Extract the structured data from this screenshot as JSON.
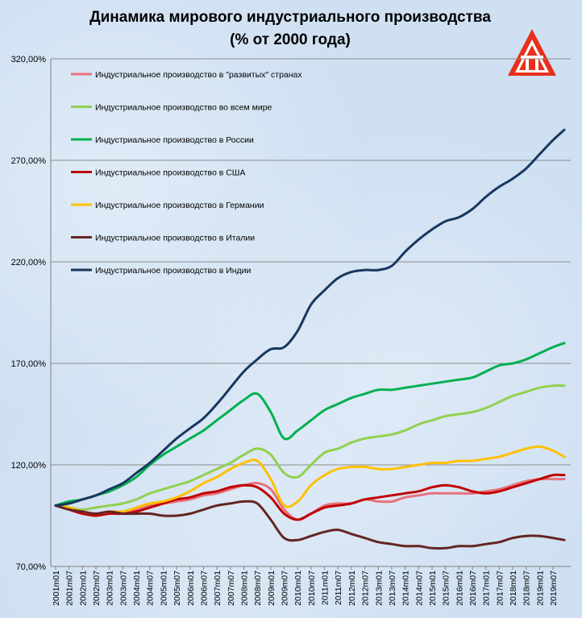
{
  "title": {
    "line1": "Динамика мирового индустриального производства",
    "line2": "(% от 2000 года)"
  },
  "logo": {
    "icon": "logo-mark-icon",
    "colors": [
      "#e8301c",
      "#ffffff"
    ]
  },
  "chart_data": {
    "type": "line",
    "ylim": [
      70,
      320
    ],
    "y_ticks": [
      70,
      120,
      170,
      220,
      270,
      320
    ],
    "y_tick_labels": [
      "70,00%",
      "120,00%",
      "170,00%",
      "220,00%",
      "270,00%",
      "320,00%"
    ],
    "grid": "horizontal",
    "legend_position": "top-left",
    "x_tick_labels": [
      "2001m01",
      "2001m07",
      "2002m01",
      "2002m07",
      "2003m01",
      "2003m07",
      "2004m01",
      "2004m07",
      "2005m01",
      "2005m07",
      "2006m01",
      "2006m07",
      "2007m01",
      "2007m07",
      "2008m01",
      "2008m07",
      "2009m01",
      "2009m07",
      "2010m01",
      "2010m07",
      "2011m01",
      "2011m07",
      "2012m01",
      "2012m07",
      "2013m01",
      "2013m07",
      "2014m01",
      "2014m07",
      "2015m01",
      "2015m07",
      "2016m01",
      "2016m07",
      "2017m01",
      "2017m07",
      "2018m01",
      "2018m07",
      "2019m01",
      "2019m07"
    ],
    "x": [
      "2001m01",
      "2001m07",
      "2002m01",
      "2002m07",
      "2003m01",
      "2003m07",
      "2004m01",
      "2004m07",
      "2005m01",
      "2005m07",
      "2006m01",
      "2006m07",
      "2007m01",
      "2007m07",
      "2008m01",
      "2008m07",
      "2009m01",
      "2009m07",
      "2010m01",
      "2010m07",
      "2011m01",
      "2011m07",
      "2012m01",
      "2012m07",
      "2013m01",
      "2013m07",
      "2014m01",
      "2014m07",
      "2015m01",
      "2015m07",
      "2016m01",
      "2016m07",
      "2017m01",
      "2017m07",
      "2018m01",
      "2018m07",
      "2019m01",
      "2019m07",
      "2019m12"
    ],
    "series": [
      {
        "name": "Индустриальное производство в \"развитых\" странах",
        "color": "#e8717c",
        "values": [
          100,
          98,
          96,
          96,
          97,
          97,
          98,
          100,
          101,
          102,
          103,
          105,
          106,
          108,
          110,
          111,
          108,
          98,
          93,
          96,
          100,
          101,
          101,
          103,
          102,
          102,
          104,
          105,
          106,
          106,
          106,
          106,
          107,
          108,
          110,
          112,
          113,
          113,
          113
        ]
      },
      {
        "name": "Индустриальное производство во всем мире",
        "color": "#92d050",
        "values": [
          100,
          99,
          98,
          99,
          100,
          101,
          103,
          106,
          108,
          110,
          112,
          115,
          118,
          121,
          125,
          128,
          125,
          116,
          114,
          120,
          126,
          128,
          131,
          133,
          134,
          135,
          137,
          140,
          142,
          144,
          145,
          146,
          148,
          151,
          154,
          156,
          158,
          159,
          159
        ]
      },
      {
        "name": "Индустриальное производство в России",
        "color": "#00b050",
        "values": [
          100,
          102,
          103,
          105,
          107,
          110,
          114,
          120,
          125,
          129,
          133,
          137,
          142,
          147,
          152,
          155,
          146,
          133,
          137,
          142,
          147,
          150,
          153,
          155,
          157,
          157,
          158,
          159,
          160,
          161,
          162,
          163,
          166,
          169,
          170,
          172,
          175,
          178,
          180
        ]
      },
      {
        "name": "Индустриальное производство в США",
        "color": "#c00000",
        "values": [
          100,
          98,
          96,
          95,
          96,
          96,
          97,
          99,
          101,
          103,
          104,
          106,
          107,
          109,
          110,
          109,
          104,
          96,
          93,
          96,
          99,
          100,
          101,
          103,
          104,
          105,
          106,
          107,
          109,
          110,
          109,
          107,
          106,
          107,
          109,
          111,
          113,
          115,
          115
        ]
      },
      {
        "name": "Индустриальное производство в Германии",
        "color": "#ffc000",
        "values": [
          100,
          99,
          97,
          96,
          97,
          97,
          99,
          101,
          102,
          104,
          107,
          111,
          114,
          118,
          121,
          122,
          113,
          100,
          102,
          110,
          115,
          118,
          119,
          119,
          118,
          118,
          119,
          120,
          121,
          121,
          122,
          122,
          123,
          124,
          126,
          128,
          129,
          127,
          124
        ]
      },
      {
        "name": "Индустриальное производство в Италии",
        "color": "#632523",
        "values": [
          100,
          98,
          97,
          96,
          97,
          96,
          96,
          96,
          95,
          95,
          96,
          98,
          100,
          101,
          102,
          101,
          93,
          84,
          83,
          85,
          87,
          88,
          86,
          84,
          82,
          81,
          80,
          80,
          79,
          79,
          80,
          80,
          81,
          82,
          84,
          85,
          85,
          84,
          83
        ]
      },
      {
        "name": "Индустриальное производство в Индии",
        "color": "#17375e",
        "values": [
          100,
          101,
          103,
          105,
          108,
          111,
          116,
          121,
          127,
          133,
          138,
          143,
          150,
          158,
          166,
          172,
          177,
          178,
          186,
          199,
          206,
          212,
          215,
          216,
          216,
          218,
          225,
          231,
          236,
          240,
          242,
          246,
          252,
          257,
          261,
          266,
          273,
          280,
          285
        ]
      }
    ]
  }
}
